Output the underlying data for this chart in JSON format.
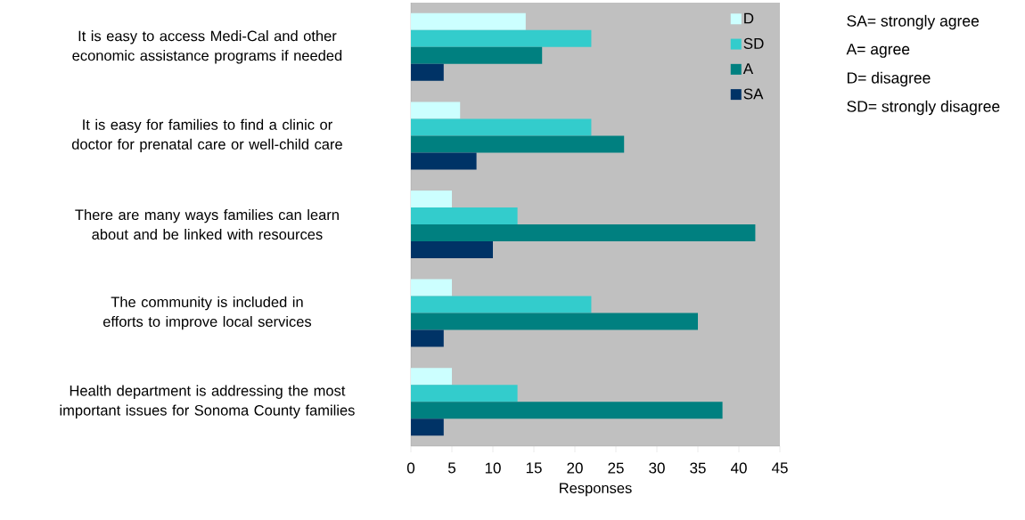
{
  "chart_data": {
    "type": "bar",
    "orientation": "horizontal",
    "categories": [
      "It is easy to access Medi-Cal and other economic assistance programs if needed",
      "It is easy for families to find a clinic or doctor for prenatal care or well-child care",
      "There are many ways families can learn about and be linked with resources",
      "The community is included in efforts to improve local services",
      "Health department is addressing the most important issues for Sonoma County families"
    ],
    "series": [
      {
        "name": "D",
        "color": "#ccffff",
        "values": [
          14,
          6,
          5,
          5,
          5
        ]
      },
      {
        "name": "SD",
        "color": "#33cccc",
        "values": [
          22,
          22,
          13,
          22,
          13
        ]
      },
      {
        "name": "A",
        "color": "#008080",
        "values": [
          16,
          26,
          42,
          35,
          38
        ]
      },
      {
        "name": "SA",
        "color": "#003366",
        "values": [
          4,
          8,
          10,
          4,
          4
        ]
      }
    ],
    "xlim": [
      0,
      45
    ],
    "xticks": [
      0,
      5,
      10,
      15,
      20,
      25,
      30,
      35,
      40,
      45
    ],
    "xlabel": "Responses",
    "legend": "top right",
    "annotations": [
      "SA= strongly agree",
      "A= agree",
      "D= disagree",
      "SD= strongly disagree"
    ]
  }
}
